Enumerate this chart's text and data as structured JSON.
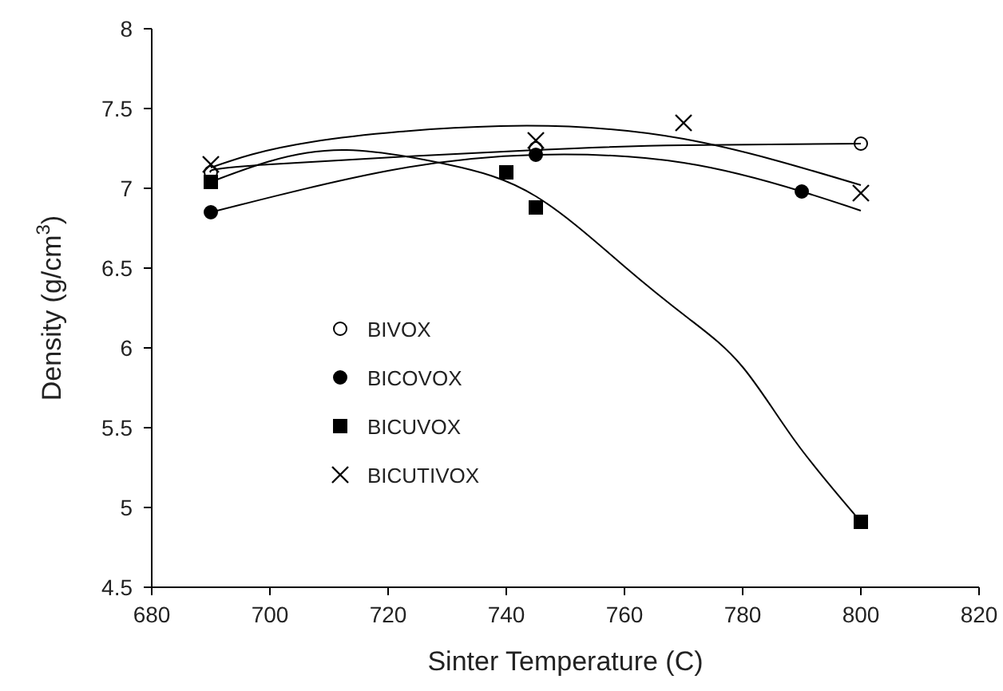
{
  "chart_data": {
    "type": "scatter",
    "xlabel": "Sinter Temperature (C)",
    "ylabel": "Density (g/cm$^{3}$)",
    "xlim": [
      680,
      820
    ],
    "xticks": [
      680,
      700,
      720,
      740,
      760,
      780,
      800,
      820
    ],
    "ylim": [
      4.5,
      8
    ],
    "yticks": [
      4.5,
      5,
      5.5,
      6,
      6.5,
      7,
      7.5,
      8
    ],
    "grid": false,
    "legend": "left",
    "series": [
      {
        "name": "BIVOX",
        "type": "scatter",
        "marker": "circle",
        "color": "#ffffff",
        "x": [
          690,
          745,
          800
        ],
        "values": [
          7.1,
          7.25,
          7.28
        ]
      },
      {
        "name": "BICOVOX",
        "type": "scatter",
        "marker": "circle",
        "color": "#000000",
        "x": [
          690,
          745,
          790
        ],
        "values": [
          6.85,
          7.21,
          6.98
        ]
      },
      {
        "name": "BICUVOX",
        "type": "scatter",
        "marker": "square",
        "color": "#000000",
        "x": [
          690,
          740,
          745,
          800
        ],
        "values": [
          7.04,
          7.1,
          6.88,
          4.91
        ]
      },
      {
        "name": "BICUTIVOX",
        "type": "scatter",
        "marker": "cross",
        "color": "#000000",
        "x": [
          690,
          745,
          770,
          800
        ],
        "values": [
          7.15,
          7.3,
          7.41,
          6.97
        ]
      },
      {
        "type": "line",
        "marker": "none",
        "color": "#000000",
        "x": [
          690,
          700,
          745,
          770,
          800
        ],
        "values": [
          7.1,
          7.15,
          7.24,
          7.27,
          7.28
        ]
      },
      {
        "type": "line",
        "marker": "none",
        "color": "#000000",
        "x": [
          690,
          720,
          745,
          770,
          790,
          800
        ],
        "values": [
          6.85,
          7.11,
          7.21,
          7.16,
          6.98,
          6.86
        ]
      },
      {
        "type": "line",
        "marker": "none",
        "color": "#000000",
        "x": [
          690,
          700,
          713,
          730,
          745,
          760,
          771,
          780,
          789,
          800
        ],
        "values": [
          7.04,
          7.17,
          7.24,
          7.15,
          6.95,
          6.51,
          6.18,
          5.88,
          5.41,
          4.91
        ]
      },
      {
        "type": "line",
        "marker": "none",
        "color": "#000000",
        "x": [
          690,
          707,
          739,
          770,
          800
        ],
        "values": [
          7.13,
          7.29,
          7.39,
          7.31,
          7.02
        ]
      }
    ]
  }
}
